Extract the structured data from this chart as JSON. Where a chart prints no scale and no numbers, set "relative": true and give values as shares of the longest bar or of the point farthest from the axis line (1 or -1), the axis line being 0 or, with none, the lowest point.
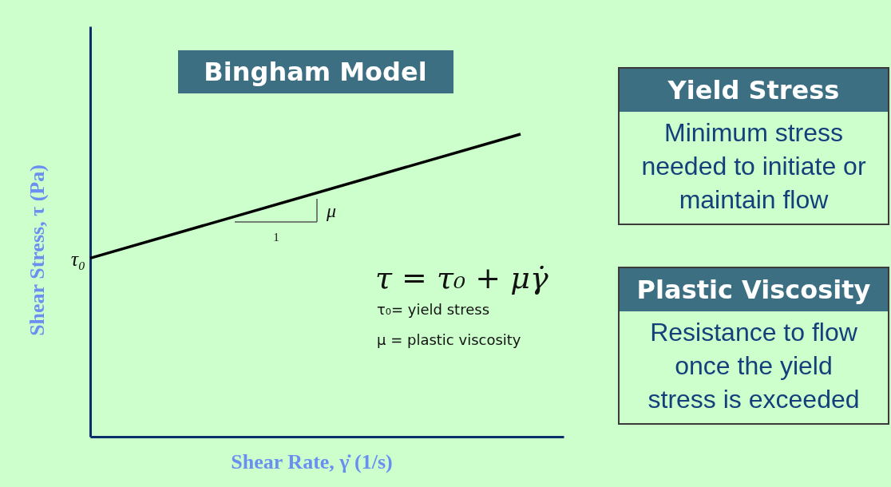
{
  "chart_data": [
    {
      "type": "line",
      "title": "Bingham Model",
      "xlabel": "Shear Rate, γ̇ (1/s)",
      "ylabel": "Shear Stress, τ (Pa)",
      "categories": [
        null,
        null
      ],
      "relative": true,
      "series": [
        {
          "color": "#000000",
          "values": [
            0.59,
            1
          ]
        }
      ],
      "annotations": [
        "τ₀",
        "1",
        "μ",
        "τ = τ₀ + μγ̇",
        "τ₀= yield stress",
        "μ = plastic viscosity"
      ]
    },
    {
      "type": "other",
      "title": "Yield Stress",
      "annotations": [
        "Minimum stress\nneeded to initiate or\nmaintain flow"
      ]
    },
    {
      "type": "other",
      "title": "Plastic Viscosity",
      "annotations": [
        "Resistance to flow\nonce the yield\nstress is exceeded"
      ]
    }
  ]
}
